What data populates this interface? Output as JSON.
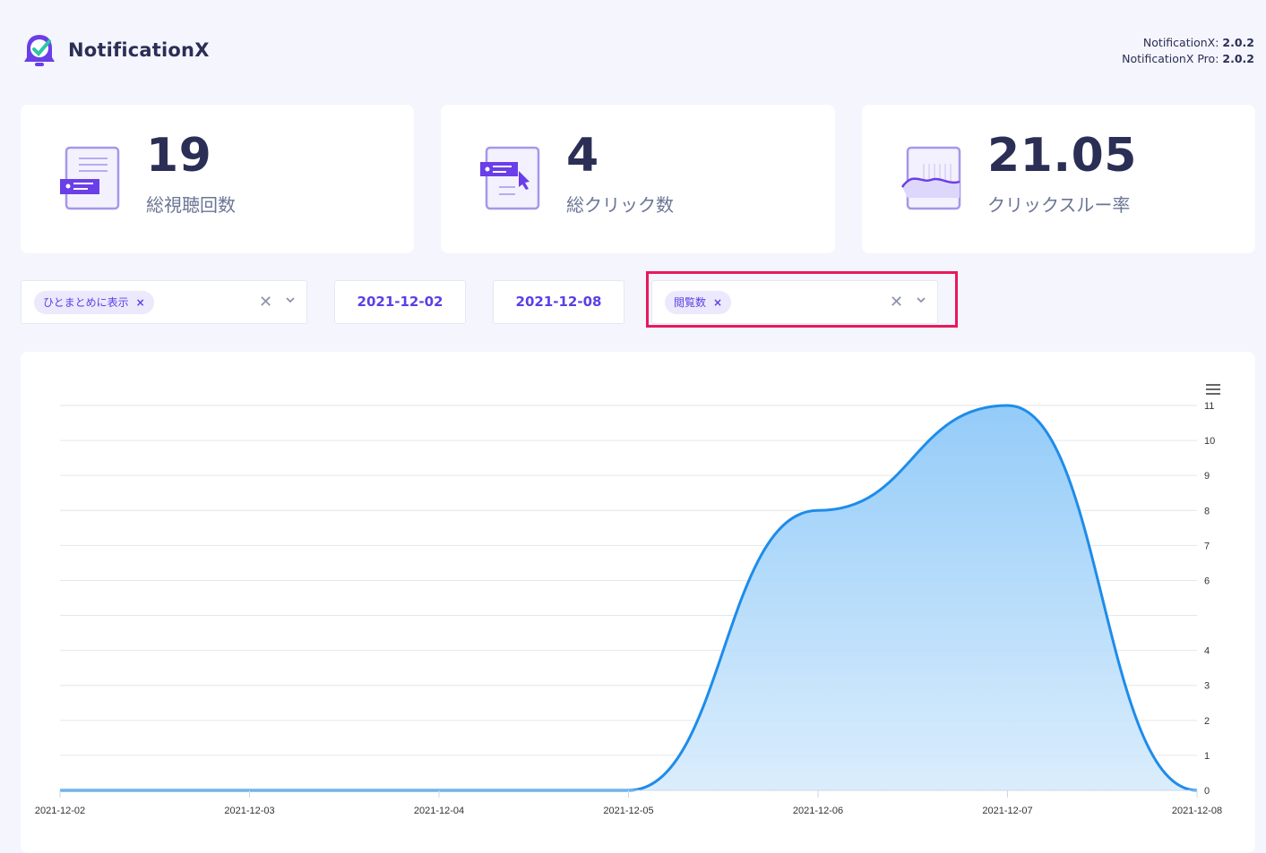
{
  "header": {
    "brand": "NotificationX",
    "versions": [
      {
        "label": "NotificationX:",
        "value": "2.0.2"
      },
      {
        "label": "NotificationX Pro:",
        "value": "2.0.2"
      }
    ]
  },
  "stats": [
    {
      "value": "19",
      "label": "総視聴回数",
      "icon": "document-views-icon"
    },
    {
      "value": "4",
      "label": "総クリック数",
      "icon": "click-cursor-icon"
    },
    {
      "value": "21.05",
      "label": "クリックスルー率",
      "icon": "ctr-graph-icon"
    }
  ],
  "filters": {
    "display_mode": {
      "chip": "ひとまとめに表示"
    },
    "start_date": "2021-12-02",
    "end_date": "2021-12-08",
    "metric": {
      "chip": "閲覧数"
    }
  },
  "colors": {
    "accent": "#5c3fe6",
    "series_line": "#1e8cea",
    "series_fill": "#9fd3fb",
    "highlight": "#e8195a"
  },
  "chart_data": {
    "type": "area",
    "x": [
      "2021-12-02",
      "2021-12-03",
      "2021-12-04",
      "2021-12-05",
      "2021-12-06",
      "2021-12-07",
      "2021-12-08"
    ],
    "x_tick_labels": [
      "2021-12-02",
      "2021-12-03",
      "2021-12-04",
      "2021-12-05",
      "2021-12-06",
      "2021-12-07",
      "2021-12-08"
    ],
    "values": [
      0,
      0,
      0,
      0,
      8,
      11,
      0
    ],
    "y_ticks": [
      0,
      1,
      2,
      3,
      4,
      6,
      7,
      8,
      9,
      10,
      11
    ],
    "ylim": [
      0,
      11
    ],
    "y_axis_side": "right",
    "grid": true,
    "title": "",
    "xlabel": "",
    "ylabel": ""
  }
}
